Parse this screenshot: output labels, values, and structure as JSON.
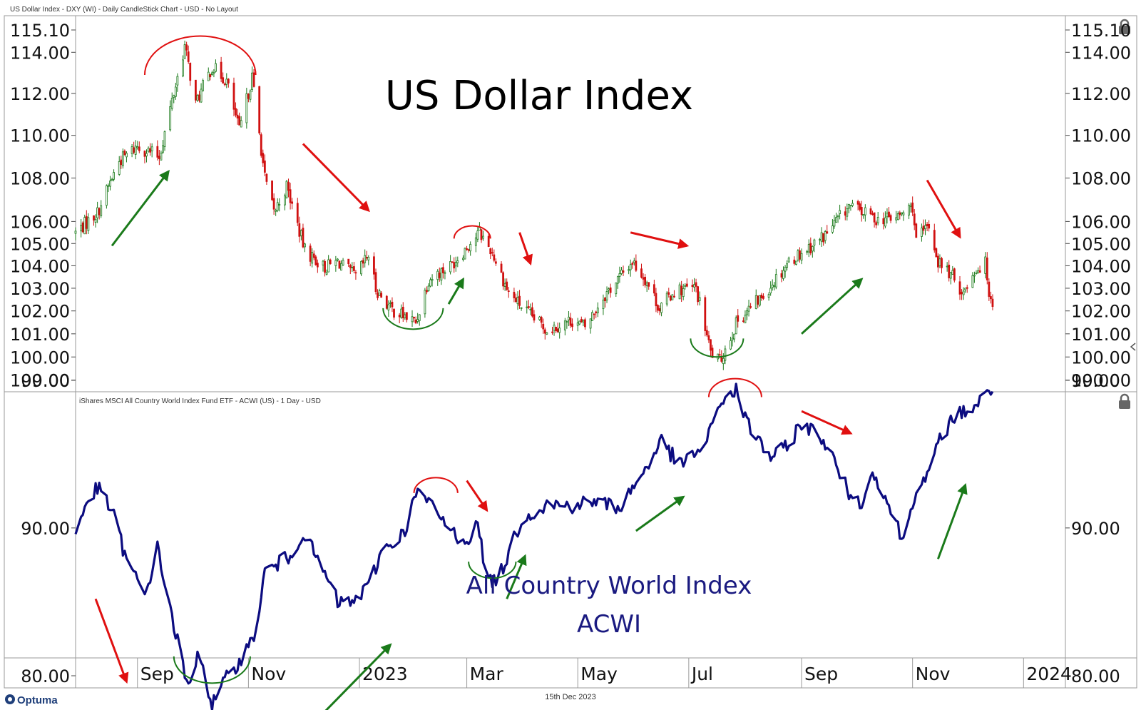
{
  "upper_header": "US Dollar Index - DXY (WI) - Daily CandleStick Chart - USD - No Layout",
  "lower_header": "iShares MSCI All Country World Index Fund ETF - ACWI (US) - 1 Day - USD",
  "footer": {
    "brand": "Optuma",
    "date": "15th Dec 2023"
  },
  "icons": [
    "lock-icon",
    "optuma-logo-icon",
    "collapse-arrow-icon"
  ],
  "colors": {
    "candle_up": "#1a7a1a",
    "candle_down": "#d01010",
    "acwi_line": "#0c0c80",
    "arrow_up": "#1a7a1a",
    "arrow_down": "#e01010"
  },
  "chart_data": [
    {
      "type": "candlestick",
      "title": "US Dollar Index",
      "yticks": [
        "115.10",
        "114.00",
        "112.00",
        "110.00",
        "108.00",
        "106.00",
        "105.00",
        "104.00",
        "103.00",
        "102.00",
        "101.00",
        "100.00",
        "99.00"
      ],
      "ylim": [
        99.0,
        115.1
      ],
      "scale": "log",
      "xlim": [
        "2022-07-29",
        "2024-01-24"
      ],
      "xticks": [
        {
          "label": "Sep",
          "date": "2022-09-01"
        },
        {
          "label": "Nov",
          "date": "2022-11-01"
        },
        {
          "label": "2023",
          "date": "2023-01-01"
        },
        {
          "label": "Mar",
          "date": "2023-03-01"
        },
        {
          "label": "May",
          "date": "2023-05-01"
        },
        {
          "label": "Jul",
          "date": "2023-07-01"
        },
        {
          "label": "Sep",
          "date": "2023-09-01"
        },
        {
          "label": "Nov",
          "date": "2023-11-01"
        },
        {
          "label": "2024",
          "date": "2024-01-01"
        }
      ],
      "anchors": [
        [
          "2022-07-29",
          105.5
        ],
        [
          "2022-08-10",
          106.4
        ],
        [
          "2022-08-22",
          108.8
        ],
        [
          "2022-09-01",
          109.5
        ],
        [
          "2022-09-13",
          109.0
        ],
        [
          "2022-09-27",
          114.3
        ],
        [
          "2022-10-03",
          111.5
        ],
        [
          "2022-10-12",
          113.3
        ],
        [
          "2022-10-20",
          112.6
        ],
        [
          "2022-10-27",
          110.2
        ],
        [
          "2022-11-03",
          112.8
        ],
        [
          "2022-11-10",
          108.0
        ],
        [
          "2022-11-15",
          106.4
        ],
        [
          "2022-11-22",
          107.6
        ],
        [
          "2022-12-02",
          104.7
        ],
        [
          "2022-12-13",
          103.9
        ],
        [
          "2022-12-20",
          104.2
        ],
        [
          "2022-12-30",
          103.5
        ],
        [
          "2023-01-06",
          104.5
        ],
        [
          "2023-01-10",
          103.0
        ],
        [
          "2023-01-18",
          102.1
        ],
        [
          "2023-02-01",
          101.5
        ],
        [
          "2023-02-08",
          103.4
        ],
        [
          "2023-02-20",
          104.0
        ],
        [
          "2023-03-08",
          105.5
        ],
        [
          "2023-03-15",
          104.6
        ],
        [
          "2023-03-24",
          102.8
        ],
        [
          "2023-04-05",
          101.8
        ],
        [
          "2023-04-14",
          101.2
        ],
        [
          "2023-04-28",
          101.6
        ],
        [
          "2023-05-05",
          101.3
        ],
        [
          "2023-05-15",
          102.6
        ],
        [
          "2023-05-31",
          104.2
        ],
        [
          "2023-06-08",
          103.3
        ],
        [
          "2023-06-15",
          102.1
        ],
        [
          "2023-06-23",
          102.9
        ],
        [
          "2023-07-05",
          103.0
        ],
        [
          "2023-07-13",
          100.2
        ],
        [
          "2023-07-18",
          99.8
        ],
        [
          "2023-07-28",
          101.6
        ],
        [
          "2023-08-10",
          102.6
        ],
        [
          "2023-08-25",
          104.2
        ],
        [
          "2023-09-08",
          105.0
        ],
        [
          "2023-09-14",
          105.4
        ],
        [
          "2023-09-27",
          106.7
        ],
        [
          "2023-10-05",
          106.4
        ],
        [
          "2023-10-13",
          106.1
        ],
        [
          "2023-10-24",
          106.2
        ],
        [
          "2023-11-01",
          106.7
        ],
        [
          "2023-11-03",
          105.1
        ],
        [
          "2023-11-10",
          105.8
        ],
        [
          "2023-11-15",
          104.2
        ],
        [
          "2023-11-22",
          103.6
        ],
        [
          "2023-11-29",
          102.8
        ],
        [
          "2023-12-05",
          103.8
        ],
        [
          "2023-12-11",
          104.1
        ],
        [
          "2023-12-13",
          102.9
        ],
        [
          "2023-12-15",
          102.4
        ]
      ],
      "annotations": {
        "tops": [
          [
            "2022-09-05",
            "2022-11-05",
            114.8
          ],
          [
            "2023-02-22",
            "2023-03-14",
            105.8
          ]
        ],
        "bottoms": [
          [
            "2023-01-14",
            "2023-02-16",
            101.2
          ],
          [
            "2023-07-02",
            "2023-07-31",
            100.0
          ]
        ],
        "up_arrows": [
          [
            [
              "2022-08-18",
              104.9
            ],
            [
              "2022-09-18",
              108.3
            ]
          ],
          [
            [
              "2023-02-19",
              102.3
            ],
            [
              "2023-02-27",
              103.4
            ]
          ],
          [
            [
              "2023-09-01",
              101.0
            ],
            [
              "2023-10-04",
              103.4
            ]
          ]
        ],
        "down_arrows": [
          [
            [
              "2022-12-01",
              109.6
            ],
            [
              "2023-01-06",
              106.5
            ]
          ],
          [
            [
              "2023-03-30",
              105.5
            ],
            [
              "2023-04-05",
              104.1
            ]
          ],
          [
            [
              "2023-05-30",
              105.5
            ],
            [
              "2023-06-30",
              104.9
            ]
          ],
          [
            [
              "2023-11-09",
              107.9
            ],
            [
              "2023-11-27",
              105.3
            ]
          ]
        ]
      }
    },
    {
      "type": "line",
      "title": "All Country World Index\nACWI",
      "yticks": [
        "100.00",
        "90.00",
        "80.00"
      ],
      "ylim": [
        73.0,
        101.0
      ],
      "xlim": [
        "2022-07-29",
        "2024-01-24"
      ],
      "anchors": [
        [
          "2022-07-29",
          89.5
        ],
        [
          "2022-08-03",
          91.5
        ],
        [
          "2022-08-10",
          92.7
        ],
        [
          "2022-08-18",
          91.2
        ],
        [
          "2022-08-26",
          87.8
        ],
        [
          "2022-09-05",
          85.4
        ],
        [
          "2022-09-12",
          88.6
        ],
        [
          "2022-09-20",
          84.0
        ],
        [
          "2022-09-29",
          79.0
        ],
        [
          "2022-10-05",
          81.7
        ],
        [
          "2022-10-12",
          78.0
        ],
        [
          "2022-10-20",
          79.8
        ],
        [
          "2022-11-04",
          82.5
        ],
        [
          "2022-11-10",
          87.0
        ],
        [
          "2022-11-23",
          88.0
        ],
        [
          "2022-12-01",
          89.7
        ],
        [
          "2022-12-12",
          87.1
        ],
        [
          "2022-12-20",
          85.0
        ],
        [
          "2022-12-27",
          84.9
        ],
        [
          "2023-01-06",
          86.0
        ],
        [
          "2023-01-13",
          88.4
        ],
        [
          "2023-01-25",
          89.6
        ],
        [
          "2023-02-02",
          92.5
        ],
        [
          "2023-02-10",
          91.4
        ],
        [
          "2023-02-22",
          89.6
        ],
        [
          "2023-03-01",
          89.2
        ],
        [
          "2023-03-07",
          90.2
        ],
        [
          "2023-03-13",
          86.2
        ],
        [
          "2023-03-20",
          87.0
        ],
        [
          "2023-03-31",
          90.6
        ],
        [
          "2023-04-14",
          91.6
        ],
        [
          "2023-04-27",
          91.5
        ],
        [
          "2023-05-10",
          91.8
        ],
        [
          "2023-05-24",
          91.4
        ],
        [
          "2023-06-02",
          93.0
        ],
        [
          "2023-06-09",
          94.4
        ],
        [
          "2023-06-16",
          95.9
        ],
        [
          "2023-06-26",
          94.2
        ],
        [
          "2023-07-06",
          95.2
        ],
        [
          "2023-07-11",
          95.8
        ],
        [
          "2023-07-18",
          98.5
        ],
        [
          "2023-07-27",
          99.3
        ],
        [
          "2023-08-02",
          97.1
        ],
        [
          "2023-08-15",
          94.8
        ],
        [
          "2023-08-25",
          95.5
        ],
        [
          "2023-08-31",
          97.1
        ],
        [
          "2023-09-12",
          96.2
        ],
        [
          "2023-09-20",
          94.2
        ],
        [
          "2023-09-26",
          92.6
        ],
        [
          "2023-10-03",
          91.6
        ],
        [
          "2023-10-11",
          93.8
        ],
        [
          "2023-10-18",
          91.8
        ],
        [
          "2023-10-27",
          89.1
        ],
        [
          "2023-11-03",
          92.8
        ],
        [
          "2023-11-10",
          93.5
        ],
        [
          "2023-11-17",
          96.4
        ],
        [
          "2023-11-27",
          97.8
        ],
        [
          "2023-12-04",
          98.1
        ],
        [
          "2023-12-15",
          99.4
        ]
      ],
      "annotations": {
        "tops": [
          [
            "2023-01-31",
            "2023-02-24",
            93.4
          ],
          [
            "2023-07-12",
            "2023-08-10",
            100.1
          ]
        ],
        "bottoms": [
          [
            "2022-09-21",
            "2022-11-02",
            79.5
          ],
          [
            "2023-03-02",
            "2023-03-28",
            86.6
          ]
        ],
        "up_arrows": [
          [
            [
              "2022-12-10",
              77.2
            ],
            [
              "2023-01-18",
              82.1
            ]
          ],
          [
            [
              "2023-03-23",
              85.2
            ],
            [
              "2023-04-02",
              88.1
            ]
          ],
          [
            [
              "2023-06-02",
              89.8
            ],
            [
              "2023-06-28",
              92.1
            ]
          ],
          [
            [
              "2023-11-15",
              87.9
            ],
            [
              "2023-11-30",
              92.9
            ]
          ]
        ],
        "down_arrows": [
          [
            [
              "2022-08-09",
              85.2
            ],
            [
              "2022-08-26",
              79.6
            ]
          ],
          [
            [
              "2023-03-01",
              93.2
            ],
            [
              "2023-03-12",
              91.2
            ]
          ],
          [
            [
              "2023-09-01",
              97.9
            ],
            [
              "2023-09-28",
              96.4
            ]
          ]
        ]
      }
    }
  ]
}
